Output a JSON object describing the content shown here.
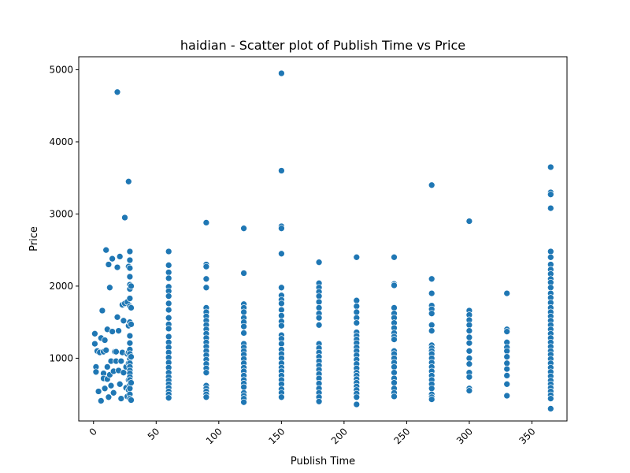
{
  "chart_data": {
    "type": "scatter",
    "title": "haidian - Scatter plot of Publish Time vs Price",
    "xlabel": "Publish Time",
    "ylabel": "Price",
    "xlim": [
      -11.8,
      378
    ],
    "ylim": [
      130,
      5180
    ],
    "x_ticks": [
      0,
      50,
      100,
      150,
      200,
      250,
      300,
      350
    ],
    "y_ticks": [
      1000,
      2000,
      3000,
      4000,
      5000
    ],
    "x_tick_rotation": 45,
    "grid": false,
    "legend": "none",
    "point_color": "#1f77b4",
    "points": [
      [
        1,
        1340
      ],
      [
        1,
        1200
      ],
      [
        2,
        880
      ],
      [
        2,
        810
      ],
      [
        3,
        1100
      ],
      [
        4,
        540
      ],
      [
        5,
        1080
      ],
      [
        6,
        1280
      ],
      [
        6,
        410
      ],
      [
        7,
        1660
      ],
      [
        8,
        1090
      ],
      [
        8,
        790
      ],
      [
        8,
        720
      ],
      [
        9,
        580
      ],
      [
        9,
        1250
      ],
      [
        10,
        2500
      ],
      [
        10,
        1110
      ],
      [
        11,
        1400
      ],
      [
        11,
        880
      ],
      [
        11,
        710
      ],
      [
        12,
        460
      ],
      [
        12,
        2300
      ],
      [
        13,
        1980
      ],
      [
        13,
        770
      ],
      [
        14,
        960
      ],
      [
        14,
        620
      ],
      [
        15,
        1370
      ],
      [
        15,
        2380
      ],
      [
        16,
        820
      ],
      [
        16,
        520
      ],
      [
        17,
        1090
      ],
      [
        18,
        1090
      ],
      [
        18,
        960
      ],
      [
        19,
        4690
      ],
      [
        19,
        2260
      ],
      [
        19,
        1570
      ],
      [
        20,
        1380
      ],
      [
        20,
        830
      ],
      [
        21,
        2410
      ],
      [
        21,
        640
      ],
      [
        22,
        440
      ],
      [
        22,
        960
      ],
      [
        23,
        1740
      ],
      [
        23,
        1080
      ],
      [
        24,
        1520
      ],
      [
        24,
        800
      ],
      [
        25,
        1760
      ],
      [
        25,
        2950
      ],
      [
        26,
        880
      ],
      [
        26,
        590
      ],
      [
        27,
        1060
      ],
      [
        27,
        470
      ],
      [
        27,
        1780
      ],
      [
        28,
        3450
      ],
      [
        28,
        2270
      ],
      [
        28,
        1450
      ],
      [
        28,
        1080
      ],
      [
        28,
        930
      ],
      [
        28,
        700
      ],
      [
        28,
        560
      ],
      [
        29,
        2480
      ],
      [
        29,
        2360
      ],
      [
        29,
        2250
      ],
      [
        29,
        2130
      ],
      [
        29,
        2020
      ],
      [
        29,
        1960
      ],
      [
        29,
        1830
      ],
      [
        29,
        1720
      ],
      [
        29,
        1500
      ],
      [
        29,
        1310
      ],
      [
        29,
        1210
      ],
      [
        29,
        1120
      ],
      [
        29,
        1060
      ],
      [
        29,
        990
      ],
      [
        29,
        930
      ],
      [
        29,
        880
      ],
      [
        29,
        830
      ],
      [
        29,
        790
      ],
      [
        29,
        740
      ],
      [
        29,
        700
      ],
      [
        29,
        630
      ],
      [
        29,
        580
      ],
      [
        29,
        500
      ],
      [
        29,
        440
      ],
      [
        30,
        2000
      ],
      [
        30,
        1700
      ],
      [
        30,
        1470
      ],
      [
        30,
        1020
      ],
      [
        30,
        660
      ],
      [
        30,
        420
      ],
      [
        60,
        2480
      ],
      [
        60,
        2290
      ],
      [
        60,
        2190
      ],
      [
        60,
        2110
      ],
      [
        60,
        1990
      ],
      [
        60,
        1930
      ],
      [
        60,
        1860
      ],
      [
        60,
        1760
      ],
      [
        60,
        1670
      ],
      [
        60,
        1560
      ],
      [
        60,
        1470
      ],
      [
        60,
        1410
      ],
      [
        60,
        1300
      ],
      [
        60,
        1220
      ],
      [
        60,
        1150
      ],
      [
        60,
        1080
      ],
      [
        60,
        1010
      ],
      [
        60,
        940
      ],
      [
        60,
        870
      ],
      [
        60,
        800
      ],
      [
        60,
        740
      ],
      [
        60,
        690
      ],
      [
        60,
        640
      ],
      [
        60,
        590
      ],
      [
        60,
        540
      ],
      [
        60,
        500
      ],
      [
        60,
        450
      ],
      [
        90,
        2880
      ],
      [
        90,
        2300
      ],
      [
        90,
        2270
      ],
      [
        90,
        2100
      ],
      [
        90,
        1980
      ],
      [
        90,
        1700
      ],
      [
        90,
        1640
      ],
      [
        90,
        1580
      ],
      [
        90,
        1520
      ],
      [
        90,
        1460
      ],
      [
        90,
        1400
      ],
      [
        90,
        1340
      ],
      [
        90,
        1280
      ],
      [
        90,
        1220
      ],
      [
        90,
        1160
      ],
      [
        90,
        1100
      ],
      [
        90,
        1040
      ],
      [
        90,
        980
      ],
      [
        90,
        920
      ],
      [
        90,
        860
      ],
      [
        90,
        800
      ],
      [
        90,
        620
      ],
      [
        90,
        580
      ],
      [
        90,
        540
      ],
      [
        90,
        500
      ],
      [
        90,
        460
      ],
      [
        120,
        2800
      ],
      [
        120,
        2180
      ],
      [
        120,
        1750
      ],
      [
        120,
        1700
      ],
      [
        120,
        1640
      ],
      [
        120,
        1560
      ],
      [
        120,
        1500
      ],
      [
        120,
        1440
      ],
      [
        120,
        1350
      ],
      [
        120,
        1200
      ],
      [
        120,
        1150
      ],
      [
        120,
        1100
      ],
      [
        120,
        1050
      ],
      [
        120,
        990
      ],
      [
        120,
        930
      ],
      [
        120,
        870
      ],
      [
        120,
        820
      ],
      [
        120,
        760
      ],
      [
        120,
        700
      ],
      [
        120,
        650
      ],
      [
        120,
        600
      ],
      [
        120,
        520
      ],
      [
        120,
        480
      ],
      [
        120,
        440
      ],
      [
        120,
        390
      ],
      [
        150,
        4950
      ],
      [
        150,
        3600
      ],
      [
        150,
        2830
      ],
      [
        150,
        2800
      ],
      [
        150,
        2450
      ],
      [
        150,
        1980
      ],
      [
        150,
        1870
      ],
      [
        150,
        1810
      ],
      [
        150,
        1760
      ],
      [
        150,
        1670
      ],
      [
        150,
        1590
      ],
      [
        150,
        1510
      ],
      [
        150,
        1450
      ],
      [
        150,
        1320
      ],
      [
        150,
        1270
      ],
      [
        150,
        1200
      ],
      [
        150,
        1120
      ],
      [
        150,
        1060
      ],
      [
        150,
        1000
      ],
      [
        150,
        930
      ],
      [
        150,
        870
      ],
      [
        150,
        820
      ],
      [
        150,
        760
      ],
      [
        150,
        700
      ],
      [
        150,
        640
      ],
      [
        150,
        570
      ],
      [
        150,
        520
      ],
      [
        150,
        460
      ],
      [
        180,
        2330
      ],
      [
        180,
        2040
      ],
      [
        180,
        1980
      ],
      [
        180,
        1920
      ],
      [
        180,
        1860
      ],
      [
        180,
        1780
      ],
      [
        180,
        1700
      ],
      [
        180,
        1620
      ],
      [
        180,
        1560
      ],
      [
        180,
        1460
      ],
      [
        180,
        1200
      ],
      [
        180,
        1140
      ],
      [
        180,
        1080
      ],
      [
        180,
        1020
      ],
      [
        180,
        960
      ],
      [
        180,
        900
      ],
      [
        180,
        840
      ],
      [
        180,
        780
      ],
      [
        180,
        720
      ],
      [
        180,
        650
      ],
      [
        180,
        580
      ],
      [
        180,
        520
      ],
      [
        180,
        460
      ],
      [
        180,
        400
      ],
      [
        210,
        2400
      ],
      [
        210,
        1800
      ],
      [
        210,
        1720
      ],
      [
        210,
        1640
      ],
      [
        210,
        1560
      ],
      [
        210,
        1490
      ],
      [
        210,
        1360
      ],
      [
        210,
        1310
      ],
      [
        210,
        1260
      ],
      [
        210,
        1210
      ],
      [
        210,
        1150
      ],
      [
        210,
        1100
      ],
      [
        210,
        1040
      ],
      [
        210,
        980
      ],
      [
        210,
        920
      ],
      [
        210,
        860
      ],
      [
        210,
        800
      ],
      [
        210,
        760
      ],
      [
        210,
        710
      ],
      [
        210,
        660
      ],
      [
        210,
        610
      ],
      [
        210,
        560
      ],
      [
        210,
        510
      ],
      [
        210,
        460
      ],
      [
        210,
        360
      ],
      [
        240,
        2400
      ],
      [
        240,
        2030
      ],
      [
        240,
        2010
      ],
      [
        240,
        1700
      ],
      [
        240,
        1620
      ],
      [
        240,
        1560
      ],
      [
        240,
        1490
      ],
      [
        240,
        1420
      ],
      [
        240,
        1350
      ],
      [
        240,
        1300
      ],
      [
        240,
        1260
      ],
      [
        240,
        1100
      ],
      [
        240,
        1060
      ],
      [
        240,
        1000
      ],
      [
        240,
        940
      ],
      [
        240,
        880
      ],
      [
        240,
        800
      ],
      [
        240,
        720
      ],
      [
        240,
        660
      ],
      [
        240,
        580
      ],
      [
        240,
        520
      ],
      [
        240,
        470
      ],
      [
        270,
        3400
      ],
      [
        270,
        2100
      ],
      [
        270,
        1900
      ],
      [
        270,
        1730
      ],
      [
        270,
        1680
      ],
      [
        270,
        1620
      ],
      [
        270,
        1460
      ],
      [
        270,
        1380
      ],
      [
        270,
        1180
      ],
      [
        270,
        1140
      ],
      [
        270,
        1100
      ],
      [
        270,
        1060
      ],
      [
        270,
        1000
      ],
      [
        270,
        940
      ],
      [
        270,
        880
      ],
      [
        270,
        820
      ],
      [
        270,
        760
      ],
      [
        270,
        700
      ],
      [
        270,
        640
      ],
      [
        270,
        580
      ],
      [
        270,
        500
      ],
      [
        270,
        460
      ],
      [
        270,
        430
      ],
      [
        300,
        2900
      ],
      [
        300,
        1660
      ],
      [
        300,
        1600
      ],
      [
        300,
        1530
      ],
      [
        300,
        1460
      ],
      [
        300,
        1380
      ],
      [
        300,
        1290
      ],
      [
        300,
        1210
      ],
      [
        300,
        1100
      ],
      [
        300,
        1000
      ],
      [
        300,
        920
      ],
      [
        300,
        800
      ],
      [
        300,
        740
      ],
      [
        300,
        580
      ],
      [
        300,
        550
      ],
      [
        330,
        1900
      ],
      [
        330,
        1400
      ],
      [
        330,
        1370
      ],
      [
        330,
        1220
      ],
      [
        330,
        1150
      ],
      [
        330,
        1100
      ],
      [
        330,
        1020
      ],
      [
        330,
        930
      ],
      [
        330,
        850
      ],
      [
        330,
        760
      ],
      [
        330,
        640
      ],
      [
        330,
        480
      ],
      [
        365,
        3650
      ],
      [
        365,
        3300
      ],
      [
        365,
        3270
      ],
      [
        365,
        3080
      ],
      [
        365,
        2480
      ],
      [
        365,
        2400
      ],
      [
        365,
        2300
      ],
      [
        365,
        2230
      ],
      [
        365,
        2170
      ],
      [
        365,
        2100
      ],
      [
        365,
        2050
      ],
      [
        365,
        1980
      ],
      [
        365,
        1900
      ],
      [
        365,
        1840
      ],
      [
        365,
        1770
      ],
      [
        365,
        1700
      ],
      [
        365,
        1640
      ],
      [
        365,
        1580
      ],
      [
        365,
        1520
      ],
      [
        365,
        1460
      ],
      [
        365,
        1400
      ],
      [
        365,
        1340
      ],
      [
        365,
        1280
      ],
      [
        365,
        1220
      ],
      [
        365,
        1160
      ],
      [
        365,
        1100
      ],
      [
        365,
        1050
      ],
      [
        365,
        990
      ],
      [
        365,
        930
      ],
      [
        365,
        870
      ],
      [
        365,
        810
      ],
      [
        365,
        750
      ],
      [
        365,
        690
      ],
      [
        365,
        640
      ],
      [
        365,
        590
      ],
      [
        365,
        540
      ],
      [
        365,
        490
      ],
      [
        365,
        440
      ],
      [
        365,
        300
      ]
    ]
  }
}
